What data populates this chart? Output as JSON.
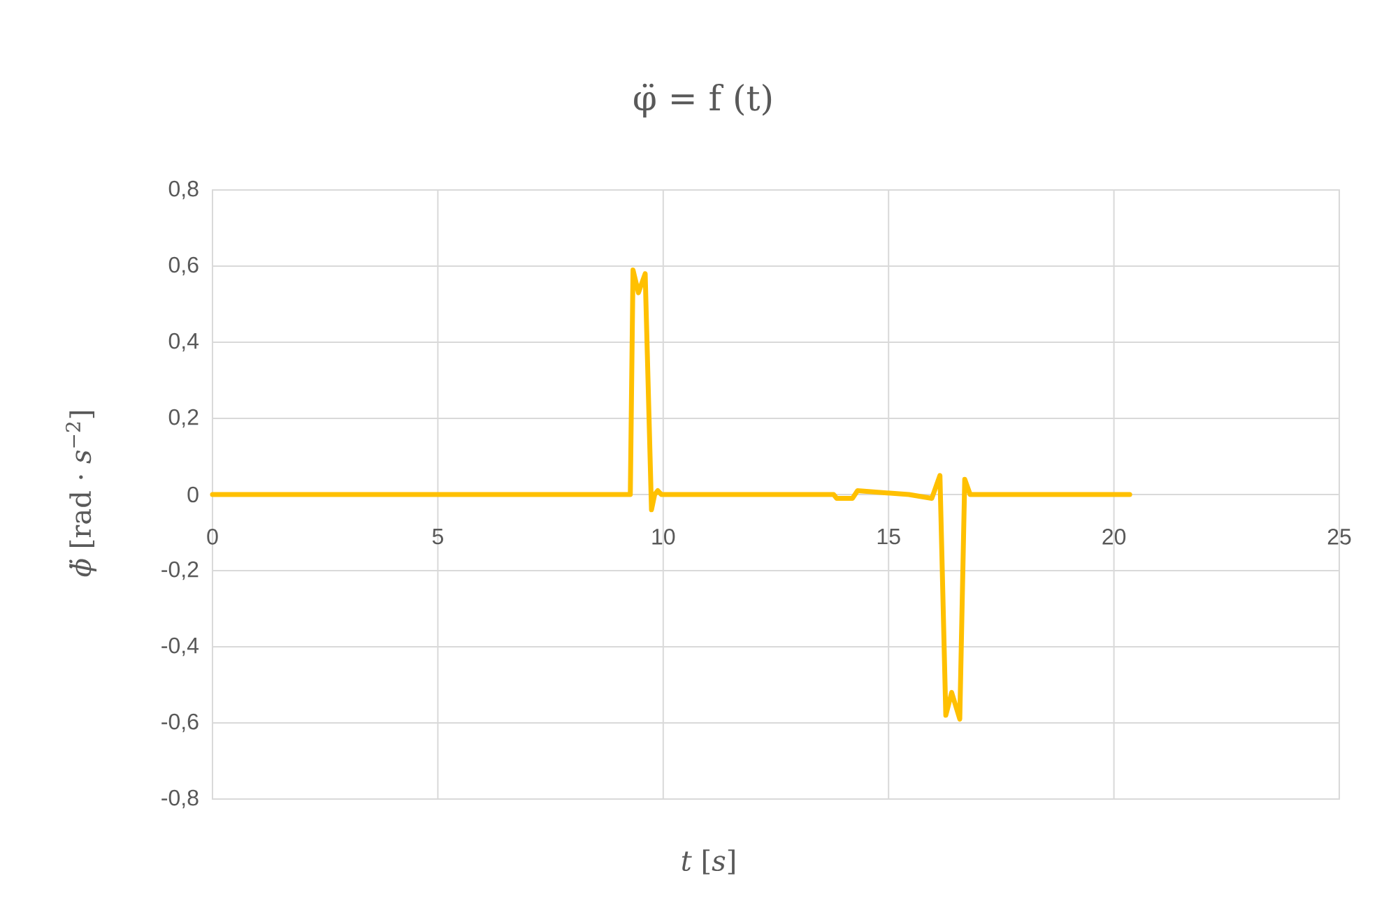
{
  "chart_data": {
    "type": "line",
    "title": "φ̈ = f (t)",
    "xlabel": "*t* [*s*]",
    "ylabel": "*ϕ̈* [rad · *s*$^{−2}$]",
    "x": [
      0,
      9.27,
      9.33,
      9.45,
      9.6,
      9.74,
      9.81,
      9.88,
      9.96,
      13.78,
      13.85,
      14.2,
      14.31,
      15.45,
      15.96,
      16.14,
      16.27,
      16.4,
      16.58,
      16.69,
      16.81,
      20.35
    ],
    "values": [
      0,
      0,
      0.59,
      0.53,
      0.58,
      -0.04,
      0,
      0.01,
      0,
      0,
      -0.01,
      -0.01,
      0.01,
      0,
      -0.01,
      0.05,
      -0.58,
      -0.52,
      -0.59,
      0.04,
      0,
      0
    ],
    "color": "#ffc000",
    "xlim": [
      0,
      25
    ],
    "xticks": [
      0,
      5,
      10,
      15,
      20,
      25
    ],
    "ylim": [
      -0.8,
      0.8
    ],
    "yticks": [
      {
        "value": -0.8,
        "label": "-0,8"
      },
      {
        "value": -0.6,
        "label": "-0,6"
      },
      {
        "value": -0.4,
        "label": "-0,4"
      },
      {
        "value": -0.2,
        "label": "-0,2"
      },
      0,
      {
        "value": 0.2,
        "label": "0,2"
      },
      {
        "value": 0.4,
        "label": "0,4"
      },
      {
        "value": 0.6,
        "label": "0,6"
      },
      {
        "value": 0.8,
        "label": "0,8"
      }
    ],
    "grid": true,
    "marker": "none",
    "line_style": "solid"
  }
}
